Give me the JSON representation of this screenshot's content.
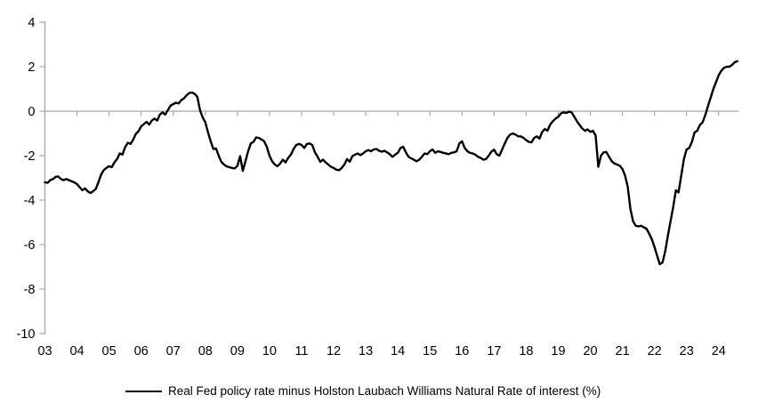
{
  "legend": {
    "label": "Real Fed policy rate minus Holston Laubach Williams Natural Rate of interest (%)",
    "swatch_color": "#000000"
  },
  "chart_data": {
    "type": "line",
    "title": "",
    "xlabel": "",
    "ylabel": "",
    "ylim": [
      -10,
      4
    ],
    "y_ticks": [
      4,
      2,
      0,
      -2,
      -4,
      -6,
      -8,
      -10
    ],
    "x_tick_labels": [
      "03",
      "04",
      "05",
      "06",
      "07",
      "08",
      "09",
      "10",
      "11",
      "12",
      "13",
      "14",
      "15",
      "16",
      "17",
      "18",
      "19",
      "20",
      "21",
      "22",
      "23",
      "24"
    ],
    "grid": "zero-baseline-only",
    "legend_position": "bottom-center",
    "line_color": "#000000",
    "axis_color": "#a6a6a6",
    "series": [
      {
        "name": "Real Fed policy rate minus Holston Laubach Williams Natural Rate of interest (%)",
        "start_year": 2003,
        "start_month": 1,
        "frequency": "monthly",
        "values": [
          -3.2,
          -3.22,
          -3.1,
          -3.05,
          -2.95,
          -2.93,
          -3.05,
          -3.1,
          -3.05,
          -3.1,
          -3.15,
          -3.2,
          -3.28,
          -3.42,
          -3.55,
          -3.47,
          -3.6,
          -3.68,
          -3.6,
          -3.5,
          -3.2,
          -2.85,
          -2.65,
          -2.55,
          -2.47,
          -2.52,
          -2.3,
          -2.15,
          -1.9,
          -1.95,
          -1.62,
          -1.42,
          -1.47,
          -1.28,
          -1.02,
          -0.9,
          -0.68,
          -0.58,
          -0.48,
          -0.6,
          -0.42,
          -0.33,
          -0.42,
          -0.15,
          -0.05,
          -0.15,
          0.05,
          0.25,
          0.32,
          0.38,
          0.35,
          0.5,
          0.58,
          0.72,
          0.82,
          0.84,
          0.78,
          0.65,
          0.05,
          -0.28,
          -0.5,
          -0.95,
          -1.35,
          -1.7,
          -1.67,
          -2.0,
          -2.28,
          -2.4,
          -2.48,
          -2.52,
          -2.55,
          -2.57,
          -2.45,
          -2.02,
          -2.68,
          -2.25,
          -1.8,
          -1.45,
          -1.38,
          -1.18,
          -1.2,
          -1.27,
          -1.35,
          -1.6,
          -2.0,
          -2.25,
          -2.4,
          -2.47,
          -2.35,
          -2.18,
          -2.3,
          -2.1,
          -1.95,
          -1.7,
          -1.52,
          -1.47,
          -1.52,
          -1.65,
          -1.47,
          -1.45,
          -1.52,
          -1.85,
          -2.05,
          -2.28,
          -2.18,
          -2.3,
          -2.4,
          -2.5,
          -2.55,
          -2.63,
          -2.65,
          -2.55,
          -2.4,
          -2.15,
          -2.27,
          -2.02,
          -1.95,
          -1.9,
          -1.97,
          -1.9,
          -1.8,
          -1.75,
          -1.8,
          -1.72,
          -1.7,
          -1.78,
          -1.82,
          -1.78,
          -1.85,
          -1.93,
          -2.05,
          -1.95,
          -1.87,
          -1.65,
          -1.6,
          -1.85,
          -2.05,
          -2.12,
          -2.18,
          -2.25,
          -2.18,
          -2.05,
          -1.9,
          -1.93,
          -1.8,
          -1.72,
          -1.87,
          -1.8,
          -1.83,
          -1.87,
          -1.9,
          -1.93,
          -1.87,
          -1.85,
          -1.8,
          -1.45,
          -1.35,
          -1.65,
          -1.8,
          -1.87,
          -1.9,
          -1.95,
          -2.05,
          -2.1,
          -2.18,
          -2.15,
          -2.0,
          -1.82,
          -1.73,
          -1.93,
          -2.0,
          -1.72,
          -1.45,
          -1.2,
          -1.05,
          -1.0,
          -1.05,
          -1.13,
          -1.13,
          -1.2,
          -1.3,
          -1.38,
          -1.4,
          -1.2,
          -1.13,
          -1.23,
          -0.93,
          -0.8,
          -0.87,
          -0.6,
          -0.45,
          -0.33,
          -0.25,
          -0.1,
          -0.05,
          -0.08,
          -0.02,
          -0.05,
          -0.25,
          -0.45,
          -0.62,
          -0.78,
          -0.88,
          -0.82,
          -0.93,
          -0.88,
          -1.1,
          -2.5,
          -2.0,
          -1.85,
          -1.83,
          -2.05,
          -2.25,
          -2.35,
          -2.4,
          -2.45,
          -2.6,
          -2.9,
          -3.4,
          -4.4,
          -4.95,
          -5.15,
          -5.18,
          -5.15,
          -5.22,
          -5.28,
          -5.5,
          -5.75,
          -6.1,
          -6.5,
          -6.88,
          -6.8,
          -6.3,
          -5.6,
          -4.95,
          -4.3,
          -3.55,
          -3.65,
          -2.9,
          -2.15,
          -1.72,
          -1.65,
          -1.38,
          -0.95,
          -0.88,
          -0.62,
          -0.5,
          -0.18,
          0.22,
          0.6,
          1.0,
          1.3,
          1.62,
          1.82,
          1.95,
          2.0,
          2.0,
          2.08,
          2.2,
          2.25
        ]
      }
    ]
  }
}
